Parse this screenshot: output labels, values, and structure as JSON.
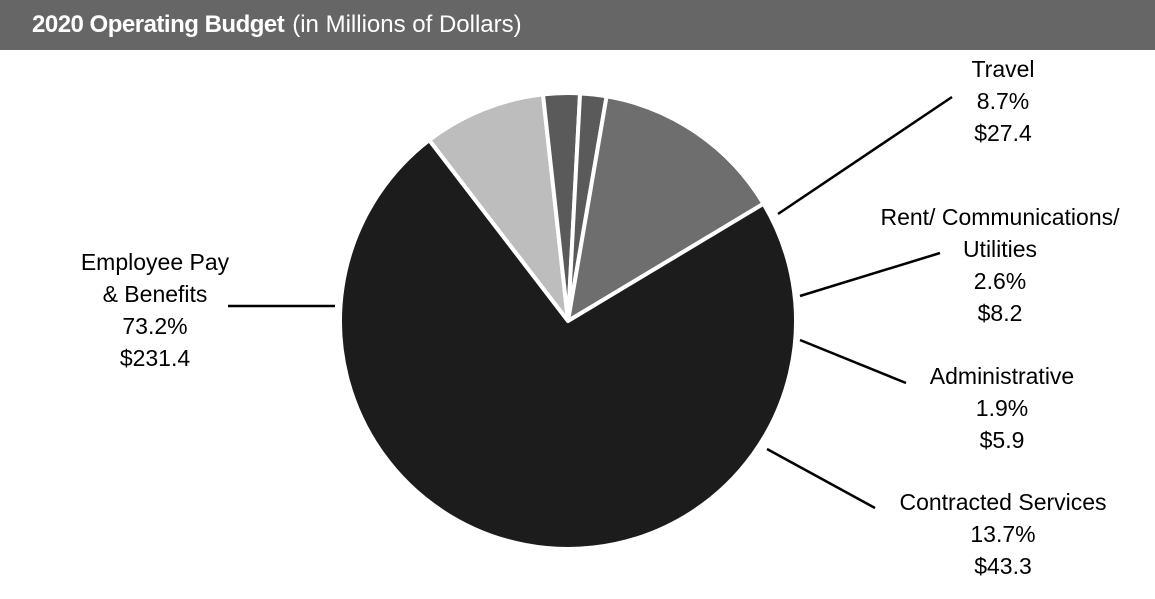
{
  "title": {
    "main": "2020 Operating Budget",
    "sub": "(in Millions of Dollars)"
  },
  "chart_data": {
    "type": "pie",
    "title": "2020 Operating Budget (in Millions of Dollars)",
    "start_angle_deg": -37.5,
    "direction": "clockwise",
    "slices": [
      {
        "name": "Travel",
        "label_lines": [
          "Travel"
        ],
        "percent": 8.7,
        "percent_label": "8.7%",
        "value": 27.4,
        "value_label": "$27.4",
        "color": "#bdbdbd"
      },
      {
        "name": "Rent/ Communications/ Utilities",
        "label_lines": [
          "Rent/ Communications/",
          "Utilities"
        ],
        "percent": 2.6,
        "percent_label": "2.6%",
        "value": 8.2,
        "value_label": "$8.2",
        "color": "#5a5a5a"
      },
      {
        "name": "Administrative",
        "label_lines": [
          "Administrative"
        ],
        "percent": 1.9,
        "percent_label": "1.9%",
        "value": 5.9,
        "value_label": "$5.9",
        "color": "#5a5a5a"
      },
      {
        "name": "Contracted Services",
        "label_lines": [
          "Contracted Services"
        ],
        "percent": 13.7,
        "percent_label": "13.7%",
        "value": 43.3,
        "value_label": "$43.3",
        "color": "#6e6e6e"
      },
      {
        "name": "Employee Pay & Benefits",
        "label_lines": [
          "Employee Pay",
          "& Benefits"
        ],
        "percent": 73.2,
        "percent_label": "73.2%",
        "value": 231.4,
        "value_label": "$231.4",
        "color": "#1c1c1c"
      }
    ]
  }
}
